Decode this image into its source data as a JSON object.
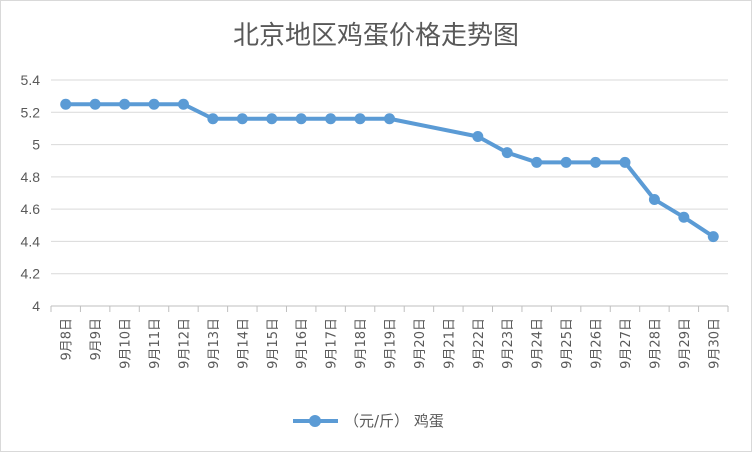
{
  "chart_data": {
    "type": "line",
    "title": "北京地区鸡蛋价格走势图",
    "xlabel": "",
    "ylabel": "",
    "ylim": [
      4,
      5.4
    ],
    "yticks": [
      4,
      4.2,
      4.4,
      4.6,
      4.8,
      5,
      5.2,
      5.4
    ],
    "ytick_labels": [
      "4",
      "4.2",
      "4.4",
      "4.6",
      "4.8",
      "5",
      "5.2",
      "5.4"
    ],
    "grid": "horizontal",
    "legend_position": "bottom",
    "line_color": "#5b9bd5",
    "categories": [
      "9月8日",
      "9月9日",
      "9月10日",
      "9月11日",
      "9月12日",
      "9月13日",
      "9月14日",
      "9月15日",
      "9月16日",
      "9月17日",
      "9月18日",
      "9月19日",
      "9月20日",
      "9月21日",
      "9月22日",
      "9月23日",
      "9月24日",
      "9月25日",
      "9月26日",
      "9月27日",
      "9月28日",
      "9月29日",
      "9月30日"
    ],
    "series": [
      {
        "name": "（元/斤） 鸡蛋",
        "values": [
          5.25,
          5.25,
          5.25,
          5.25,
          5.25,
          5.16,
          5.16,
          5.16,
          5.16,
          5.16,
          5.16,
          5.16,
          null,
          null,
          5.05,
          4.95,
          4.89,
          4.89,
          4.89,
          4.89,
          4.66,
          4.55,
          4.43
        ]
      }
    ]
  }
}
